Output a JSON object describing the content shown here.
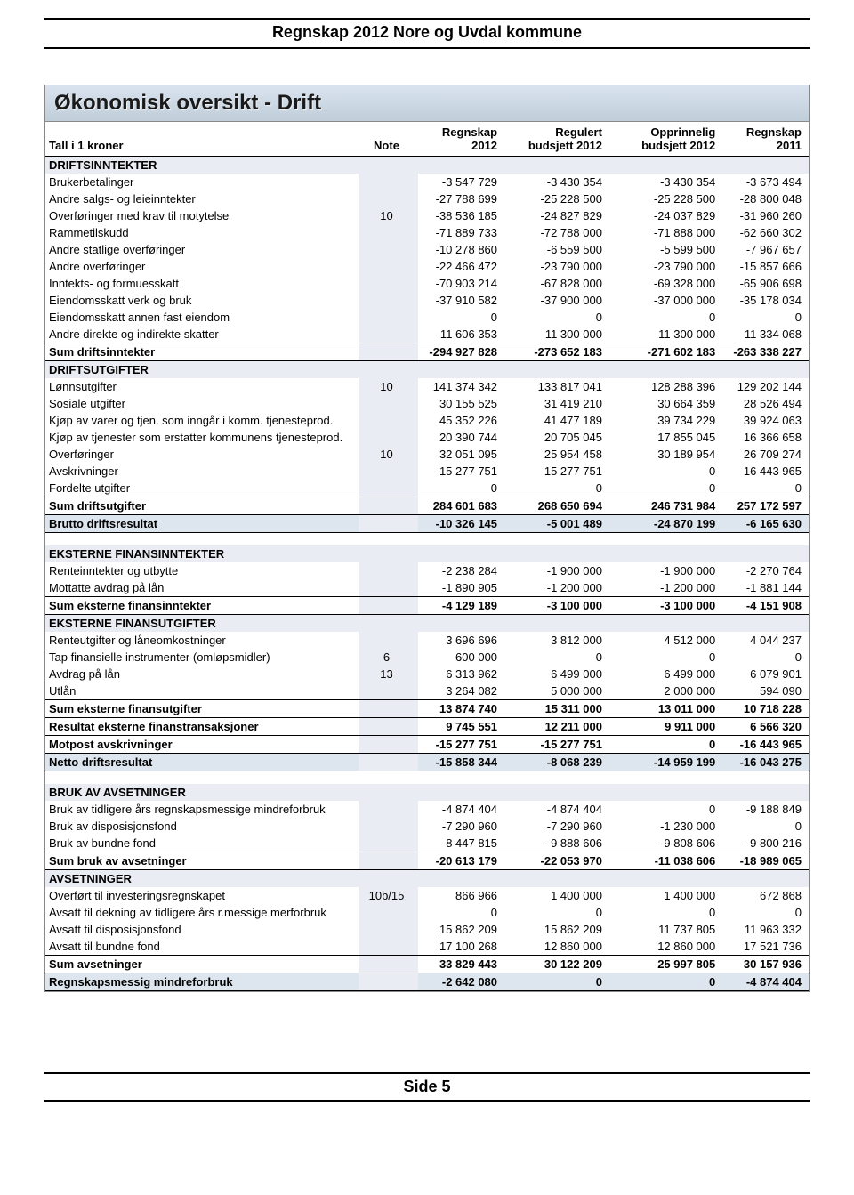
{
  "doc_header": "Regnskap 2012 Nore og Uvdal kommune",
  "panel_title": "Økonomisk oversikt - Drift",
  "page_footer": "Side 5",
  "columns": {
    "c0": "Tall i 1 kroner",
    "c1": "Note",
    "c2": "Regnskap 2012",
    "c3": "Regulert budsjett 2012",
    "c4": "Opprinnelig budsjett 2012",
    "c5": "Regnskap 2011"
  },
  "rows": [
    {
      "type": "section",
      "label": "DRIFTSINNTEKTER"
    },
    {
      "label": "Brukerbetalinger",
      "v": [
        "-3 547 729",
        "-3 430 354",
        "-3 430 354",
        "-3 673 494"
      ]
    },
    {
      "label": "Andre salgs- og leieinntekter",
      "v": [
        "-27 788 699",
        "-25 228 500",
        "-25 228 500",
        "-28 800 048"
      ]
    },
    {
      "label": "Overføringer med krav til motytelse",
      "note": "10",
      "v": [
        "-38 536 185",
        "-24 827 829",
        "-24 037 829",
        "-31 960 260"
      ]
    },
    {
      "label": "Rammetilskudd",
      "v": [
        "-71 889 733",
        "-72 788 000",
        "-71 888 000",
        "-62 660 302"
      ]
    },
    {
      "label": "Andre statlige overføringer",
      "v": [
        "-10 278 860",
        "-6 559 500",
        "-5 599 500",
        "-7 967 657"
      ]
    },
    {
      "label": "Andre overføringer",
      "v": [
        "-22 466 472",
        "-23 790 000",
        "-23 790 000",
        "-15 857 666"
      ]
    },
    {
      "label": "Inntekts- og formuesskatt",
      "v": [
        "-70 903 214",
        "-67 828 000",
        "-69 328 000",
        "-65 906 698"
      ]
    },
    {
      "label": "Eiendomsskatt verk og bruk",
      "v": [
        "-37 910 582",
        "-37 900 000",
        "-37 000 000",
        "-35 178 034"
      ]
    },
    {
      "label": "Eiendomsskatt annen fast eiendom",
      "v": [
        "0",
        "0",
        "0",
        "0"
      ]
    },
    {
      "label": "Andre direkte og indirekte skatter",
      "v": [
        "-11 606 353",
        "-11 300 000",
        "-11 300 000",
        "-11 334 068"
      ]
    },
    {
      "type": "sum",
      "label": "Sum driftsinntekter",
      "v": [
        "-294 927 828",
        "-273 652 183",
        "-271 602 183",
        "-263 338 227"
      ]
    },
    {
      "type": "section",
      "label": "DRIFTSUTGIFTER"
    },
    {
      "label": "Lønnsutgifter",
      "note": "10",
      "v": [
        "141 374 342",
        "133 817 041",
        "128 288 396",
        "129 202 144"
      ]
    },
    {
      "label": "Sosiale utgifter",
      "v": [
        "30 155 525",
        "31 419 210",
        "30 664 359",
        "28 526 494"
      ]
    },
    {
      "label": "Kjøp av varer og tjen. som inngår i komm. tjenesteprod.",
      "v": [
        "45 352 226",
        "41 477 189",
        "39 734 229",
        "39 924 063"
      ]
    },
    {
      "label": "Kjøp av tjenester som erstatter kommunens tjenesteprod.",
      "v": [
        "20 390 744",
        "20 705 045",
        "17 855 045",
        "16 366 658"
      ]
    },
    {
      "label": "Overføringer",
      "note": "10",
      "v": [
        "32 051 095",
        "25 954 458",
        "30 189 954",
        "26 709 274"
      ]
    },
    {
      "label": "Avskrivninger",
      "v": [
        "15 277 751",
        "15 277 751",
        "0",
        "16 443 965"
      ]
    },
    {
      "label": "Fordelte utgifter",
      "v": [
        "0",
        "0",
        "0",
        "0"
      ]
    },
    {
      "type": "sum",
      "label": "Sum driftsutgifter",
      "v": [
        "284 601 683",
        "268 650 694",
        "246 731 984",
        "257 172 597"
      ]
    },
    {
      "type": "strong",
      "label": "Brutto driftsresultat",
      "v": [
        "-10 326 145",
        "-5 001 489",
        "-24 870 199",
        "-6 165 630"
      ]
    },
    {
      "type": "spacer"
    },
    {
      "type": "section",
      "label": "EKSTERNE FINANSINNTEKTER"
    },
    {
      "label": "Renteinntekter og utbytte",
      "v": [
        "-2 238 284",
        "-1 900 000",
        "-1 900 000",
        "-2 270 764"
      ]
    },
    {
      "label": "Mottatte avdrag på lån",
      "v": [
        "-1 890 905",
        "-1 200 000",
        "-1 200 000",
        "-1 881 144"
      ]
    },
    {
      "type": "sum",
      "label": "Sum eksterne finansinntekter",
      "v": [
        "-4 129 189",
        "-3 100 000",
        "-3 100 000",
        "-4 151 908"
      ]
    },
    {
      "type": "section",
      "label": "EKSTERNE FINANSUTGIFTER"
    },
    {
      "label": "Renteutgifter og låneomkostninger",
      "v": [
        "3 696 696",
        "3 812 000",
        "4 512 000",
        "4 044 237"
      ]
    },
    {
      "label": "Tap finansielle instrumenter (omløpsmidler)",
      "note": "6",
      "v": [
        "600 000",
        "0",
        "0",
        "0"
      ]
    },
    {
      "label": "Avdrag på lån",
      "note": "13",
      "v": [
        "6 313 962",
        "6 499 000",
        "6 499 000",
        "6 079 901"
      ]
    },
    {
      "label": "Utlån",
      "v": [
        "3 264 082",
        "5 000 000",
        "2 000 000",
        "594 090"
      ]
    },
    {
      "type": "sum",
      "label": "Sum eksterne finansutgifter",
      "v": [
        "13 874 740",
        "15 311 000",
        "13 011 000",
        "10 718 228"
      ]
    },
    {
      "type": "sum",
      "label": "Resultat eksterne finanstransaksjoner",
      "v": [
        "9 745 551",
        "12 211 000",
        "9 911 000",
        "6 566 320"
      ]
    },
    {
      "type": "sum",
      "label": "Motpost avskrivninger",
      "v": [
        "-15 277 751",
        "-15 277 751",
        "0",
        "-16 443 965"
      ]
    },
    {
      "type": "strong",
      "label": "Netto driftsresultat",
      "v": [
        "-15 858 344",
        "-8 068 239",
        "-14 959 199",
        "-16 043 275"
      ]
    },
    {
      "type": "spacer"
    },
    {
      "type": "section",
      "label": "BRUK AV AVSETNINGER"
    },
    {
      "label": "Bruk av tidligere års regnskapsmessige mindreforbruk",
      "v": [
        "-4 874 404",
        "-4 874 404",
        "0",
        "-9 188 849"
      ]
    },
    {
      "label": "Bruk av disposisjonsfond",
      "v": [
        "-7 290 960",
        "-7 290 960",
        "-1 230 000",
        "0"
      ]
    },
    {
      "label": "Bruk av bundne fond",
      "v": [
        "-8 447 815",
        "-9 888 606",
        "-9 808 606",
        "-9 800 216"
      ]
    },
    {
      "type": "sum",
      "label": "Sum bruk av avsetninger",
      "v": [
        "-20 613 179",
        "-22 053 970",
        "-11 038 606",
        "-18 989 065"
      ]
    },
    {
      "type": "section",
      "label": "AVSETNINGER"
    },
    {
      "label": "Overført til investeringsregnskapet",
      "note": "10b/15",
      "v": [
        "866 966",
        "1 400 000",
        "1 400 000",
        "672 868"
      ]
    },
    {
      "label": "Avsatt til dekning av tidligere års r.messige merforbruk",
      "v": [
        "0",
        "0",
        "0",
        "0"
      ]
    },
    {
      "label": "Avsatt til disposisjonsfond",
      "v": [
        "15 862 209",
        "15 862 209",
        "11 737 805",
        "11 963 332"
      ]
    },
    {
      "label": "Avsatt til bundne fond",
      "v": [
        "17 100 268",
        "12 860 000",
        "12 860 000",
        "17 521 736"
      ]
    },
    {
      "type": "sum",
      "label": "Sum avsetninger",
      "v": [
        "33 829 443",
        "30 122 209",
        "25 997 805",
        "30 157 936"
      ]
    },
    {
      "type": "strong",
      "label": "Regnskapsmessig mindreforbruk",
      "v": [
        "-2 642 080",
        "0",
        "0",
        "-4 874 404"
      ]
    }
  ]
}
